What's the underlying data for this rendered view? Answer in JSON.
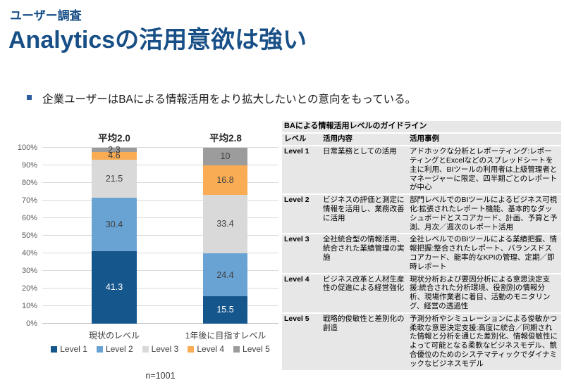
{
  "header": {
    "eyebrow": "ユーザー調査",
    "title": "Analyticsの活用意欲は強い"
  },
  "bullet": "企業ユーザーはBAによる情報活用をより拡大したいとの意向をもっている。",
  "chart_data": {
    "type": "bar",
    "stacked": true,
    "categories": [
      "現状のレベル",
      "1年後に目指すレベル"
    ],
    "bar_titles": [
      "平均2.0",
      "平均2.8"
    ],
    "series": [
      {
        "name": "Level 1",
        "color": "#15568D",
        "values": [
          41.3,
          15.5
        ]
      },
      {
        "name": "Level 2",
        "color": "#68A3D4",
        "values": [
          30.4,
          24.4
        ]
      },
      {
        "name": "Level 3",
        "color": "#D9D9D9",
        "values": [
          21.5,
          33.4
        ]
      },
      {
        "name": "Level 4",
        "color": "#F9AC54",
        "values": [
          4.6,
          16.8
        ]
      },
      {
        "name": "Level 5",
        "color": "#9C9C9C",
        "values": [
          2.3,
          10
        ]
      }
    ],
    "value_labels": [
      [
        "41.3",
        "30.4",
        "21.5",
        "4.6",
        "2.3"
      ],
      [
        "15.5",
        "24.4",
        "33.4",
        "16.8",
        "10"
      ]
    ],
    "y_ticks": [
      "0%",
      "10%",
      "20%",
      "30%",
      "40%",
      "50%",
      "60%",
      "70%",
      "80%",
      "90%",
      "100%"
    ],
    "ylim": [
      0,
      100
    ],
    "grid": true,
    "legend_position": "bottom",
    "note": "n=1001"
  },
  "table": {
    "caption": "BAによる情報活用レベルのガイドライン",
    "columns": [
      "レベル",
      "活用内容",
      "活用事例"
    ],
    "rows": [
      {
        "level": "Level 1",
        "content": "日常業務としての活用",
        "examples": "アドホックな分析とレポーティング:レポーティングとExcelなどのスプレッドシートを主に利用、BIツールの利用者は上級管理者とマネージャーに限定、四半期ごとのレポートが中心"
      },
      {
        "level": "Level 2",
        "content": "ビジネスの評価と測定に情報を活用し、業務改善に活用",
        "examples": "部門レベルでのBIツールによるビジネス可視化:拡張されたレポート機能、基本的なダッシュボードとスコアカード、計画、予算と予測、月次／週次のレポート活用"
      },
      {
        "level": "Level 3",
        "content": "全社統合型の情報活用、統合された業績管理の実施",
        "examples": "全社レベルでのBIツールによる業績把握、情報把握:整合されたレポート、バランスドスコアカード、能率的なKPIの管理、定期／即時レポート"
      },
      {
        "level": "Level 4",
        "content": "ビジネス改革と人材生産性の促進による経営強化",
        "examples": "現状分析および要因分析による意思決定支援:統合された分析環境、役割別の情報分析、現場作業者に着目、活動のモニタリング、経営の透過性"
      },
      {
        "level": "Level 5",
        "content": "戦略的俊敏性と差別化の創造",
        "examples": "予測分析やシミュレーションによる俊敏かつ柔軟な意思決定支援:高度に統合／同期された情報と分析を通じた差別化、情報俊敏性によって可能となる柔軟なビジネスモデル、競合優位のためのシステマティックでダイナミックなビジネスモデル"
      }
    ]
  },
  "colors": {
    "title_blue": "#174F86",
    "table_row_bg": "#E7E7E7",
    "gridline": "#D9D9D9"
  }
}
